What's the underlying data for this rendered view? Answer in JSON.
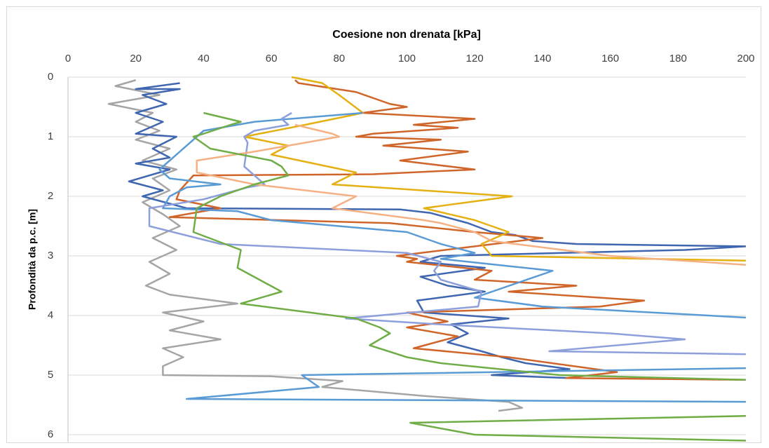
{
  "chart_data": {
    "type": "line",
    "title": "Coesione non drenata [kPa]",
    "y_label": "Profondità da p.c. [m]",
    "xlim": [
      0,
      200
    ],
    "xticks": [
      0,
      20,
      40,
      60,
      80,
      100,
      120,
      140,
      160,
      180,
      200
    ],
    "ylim": [
      0,
      6.1
    ],
    "yticks": [
      0,
      1,
      2,
      3,
      4,
      5,
      6
    ],
    "y_inverted": true,
    "grid": true,
    "series": [
      {
        "color": "#a5a5a5",
        "depth": [
          0.05,
          0.15,
          0.3,
          0.45,
          0.6,
          0.75,
          0.9,
          1.05,
          1.2,
          1.4,
          1.55,
          1.7,
          1.9,
          2.1,
          2.3,
          2.5,
          2.7,
          2.9,
          3.1,
          3.3,
          3.5,
          3.65,
          3.8,
          3.95,
          4.1,
          4.25,
          4.4,
          4.55,
          4.7,
          4.85,
          5.0,
          5.02,
          5.1,
          5.2,
          5.35,
          5.45,
          5.55,
          5.6
        ],
        "values": [
          20,
          14,
          27,
          12,
          25,
          20,
          27,
          20,
          30,
          22,
          32,
          25,
          30,
          22,
          28,
          33,
          25,
          32,
          24,
          30,
          23,
          30,
          50,
          28,
          40,
          30,
          45,
          28,
          34,
          28,
          28,
          60,
          81,
          75,
          105,
          130,
          134,
          127
        ]
      },
      {
        "color": "#3f66b0",
        "depth": [
          0.1,
          0.2,
          0.2,
          0.3,
          0.45,
          0.6,
          0.75,
          0.95,
          1.0,
          1.2,
          1.35,
          1.45,
          1.55,
          1.75,
          1.9,
          2.0,
          2.2,
          2.22,
          2.28,
          2.45,
          2.6,
          2.65,
          2.75,
          2.8,
          2.84,
          2.9,
          3.0,
          3.1,
          3.2,
          3.35,
          3.5,
          3.6,
          3.75,
          3.95,
          4.05,
          4.15,
          4.3,
          4.45,
          4.6,
          4.7,
          4.8,
          4.9,
          5.0,
          5.05
        ],
        "values": [
          33,
          20,
          33,
          22,
          29,
          20,
          28,
          20,
          32,
          25,
          30,
          20,
          30,
          18,
          28,
          22,
          35,
          98,
          107,
          118,
          125,
          132,
          137,
          150,
          200,
          182,
          110,
          104,
          123,
          104,
          112,
          123,
          103,
          105,
          130,
          113,
          118,
          112,
          122,
          128,
          135,
          148,
          125,
          148
        ]
      },
      {
        "color": "#d0652a",
        "depth": [
          0.05,
          0.1,
          0.25,
          0.45,
          0.5,
          0.6,
          0.7,
          0.8,
          0.85,
          0.95,
          1.0,
          1.05,
          1.15,
          1.25,
          1.4,
          1.55,
          1.63,
          1.65,
          1.9,
          2.05,
          2.2,
          2.35,
          2.45,
          2.6,
          2.7,
          3.0,
          3.05,
          3.1,
          3.25,
          3.4,
          3.5,
          3.6,
          3.75,
          3.85,
          3.95,
          4.1,
          4.2,
          4.35,
          4.55,
          4.7,
          4.95,
          5.05,
          5.08
        ],
        "values": [
          67,
          68,
          85,
          95,
          100,
          87,
          120,
          102,
          115,
          90,
          85,
          110,
          93,
          118,
          98,
          120,
          90,
          37,
          33,
          32,
          45,
          30,
          95,
          120,
          140,
          97,
          103,
          100,
          125,
          120,
          150,
          130,
          170,
          157,
          100,
          112,
          100,
          115,
          102,
          130,
          162,
          147,
          200
        ]
      },
      {
        "color": "#e5b011",
        "depth": [
          0.0,
          0.1,
          0.3,
          0.6,
          0.8,
          1.0,
          1.15,
          1.3,
          1.6,
          1.8,
          2.0,
          2.2,
          2.4,
          2.5,
          2.6,
          2.8,
          3.0,
          3.08
        ],
        "values": [
          66,
          75,
          80,
          87,
          70,
          52,
          65,
          60,
          85,
          78,
          131,
          105,
          120,
          125,
          130,
          122,
          125,
          200
        ]
      },
      {
        "color": "#5b9bd5",
        "depth": [
          0.6,
          0.75,
          0.9,
          1.0,
          1.4,
          1.55,
          1.7,
          1.8,
          1.85,
          2.0,
          2.2,
          2.25,
          2.4,
          2.6,
          2.8,
          2.95,
          3.05,
          3.25,
          3.7,
          3.85,
          4.05,
          4.5,
          4.88,
          5.0,
          5.2,
          5.4,
          5.45
        ],
        "values": [
          87,
          55,
          40,
          38,
          30,
          27,
          30,
          45,
          35,
          30,
          28,
          50,
          60,
          100,
          110,
          120,
          110,
          143,
          120,
          140,
          205,
          260,
          205,
          69,
          74,
          35,
          205
        ]
      },
      {
        "color": "#8ea0dc",
        "depth": [
          0.6,
          0.7,
          0.8,
          0.9,
          1.0,
          1.1,
          1.5,
          1.8,
          1.85,
          2.05,
          2.2,
          2.5,
          2.8,
          2.95,
          3.1,
          3.25,
          3.4,
          3.6,
          3.85,
          4.05,
          4.15,
          4.3,
          4.4,
          4.6,
          4.65
        ],
        "values": [
          66,
          63,
          65,
          55,
          52,
          53,
          52,
          58,
          53,
          40,
          24,
          24,
          45,
          100,
          110,
          108,
          110,
          122,
          121,
          82,
          110,
          160,
          182,
          142,
          200
        ]
      },
      {
        "color": "#f4b183",
        "depth": [
          0.8,
          0.95,
          1.0,
          1.25,
          1.4,
          1.6,
          1.8,
          2.0,
          2.2,
          2.4,
          2.45,
          2.6,
          2.75,
          3.0,
          3.15
        ],
        "values": [
          67,
          78,
          80,
          55,
          38,
          38,
          55,
          85,
          78,
          105,
          110,
          120,
          125,
          160,
          200
        ]
      },
      {
        "color": "#70ad47",
        "depth": [
          0.6,
          0.75,
          0.8,
          0.95,
          1.0,
          1.2,
          1.4,
          1.5,
          1.65,
          1.8,
          2.0,
          2.2,
          2.6,
          2.9,
          3.2,
          3.6,
          3.8,
          4.05,
          4.2,
          4.3,
          4.5,
          4.7,
          4.8,
          5.0,
          5.08,
          5.1,
          5.4,
          5.68,
          5.8,
          6.0,
          6.1
        ],
        "values": [
          40,
          51,
          48,
          40,
          37,
          42,
          60,
          63,
          65,
          55,
          45,
          38,
          37,
          51,
          50,
          63,
          51,
          85,
          92,
          95,
          89,
          100,
          110,
          145,
          200,
          205,
          260,
          205,
          101,
          120,
          200
        ]
      }
    ]
  }
}
